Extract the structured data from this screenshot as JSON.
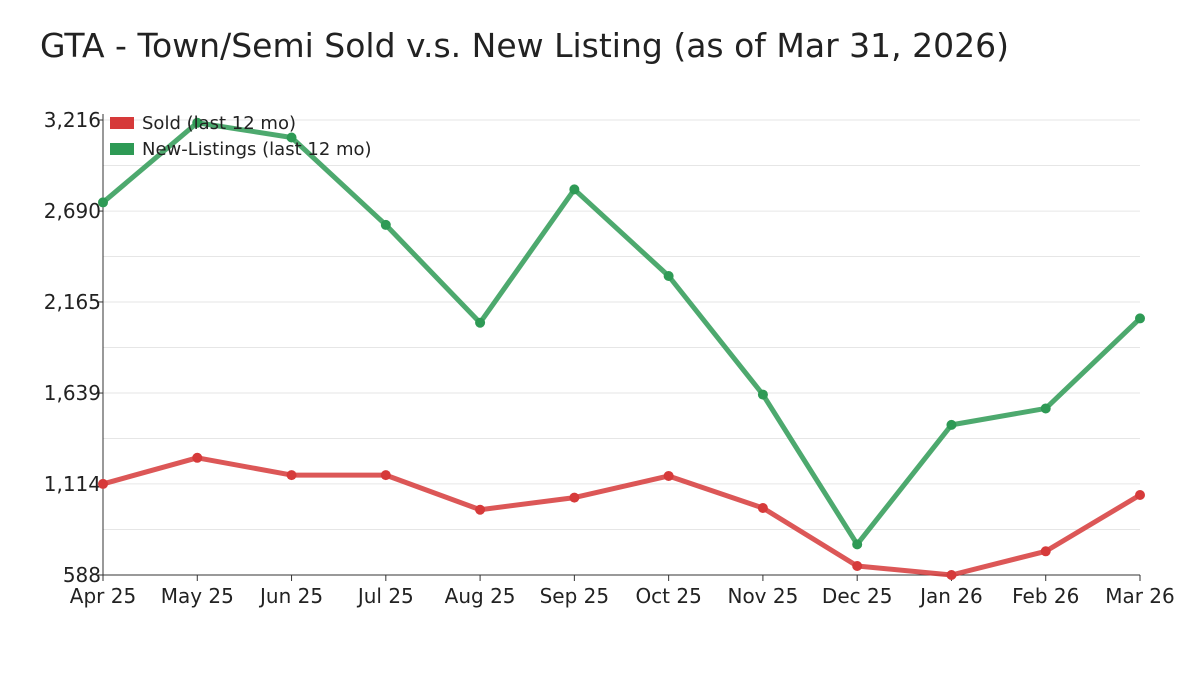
{
  "chart_data": {
    "type": "line",
    "title": "GTA - Town/Semi Sold v.s. New Listing (as of Mar 31, 2026)",
    "xlabel": "",
    "ylabel": "",
    "categories": [
      "Apr 25",
      "May 25",
      "Jun 25",
      "Jul 25",
      "Aug 25",
      "Sep 25",
      "Oct 25",
      "Nov 25",
      "Dec 25",
      "Jan 26",
      "Feb 26",
      "Mar 26"
    ],
    "yticks": [
      588,
      1114,
      1639,
      2165,
      2690,
      3216
    ],
    "ytick_labels": [
      "588",
      "1,114",
      "1,639",
      "2,165",
      "2,690",
      "3,216"
    ],
    "ylim": [
      588,
      3216
    ],
    "grid": true,
    "legend_position": "top-left",
    "series": [
      {
        "name": "Sold (last 12 mo)",
        "color": "#d63a3a",
        "values": [
          1114,
          1265,
          1165,
          1165,
          965,
          1035,
          1160,
          975,
          640,
          588,
          725,
          1050
        ]
      },
      {
        "name": "New-Listings (last 12 mo)",
        "color": "#2e9a55",
        "values": [
          2740,
          3200,
          3115,
          2610,
          2045,
          2815,
          2315,
          1630,
          765,
          1455,
          1550,
          2070
        ]
      }
    ]
  }
}
